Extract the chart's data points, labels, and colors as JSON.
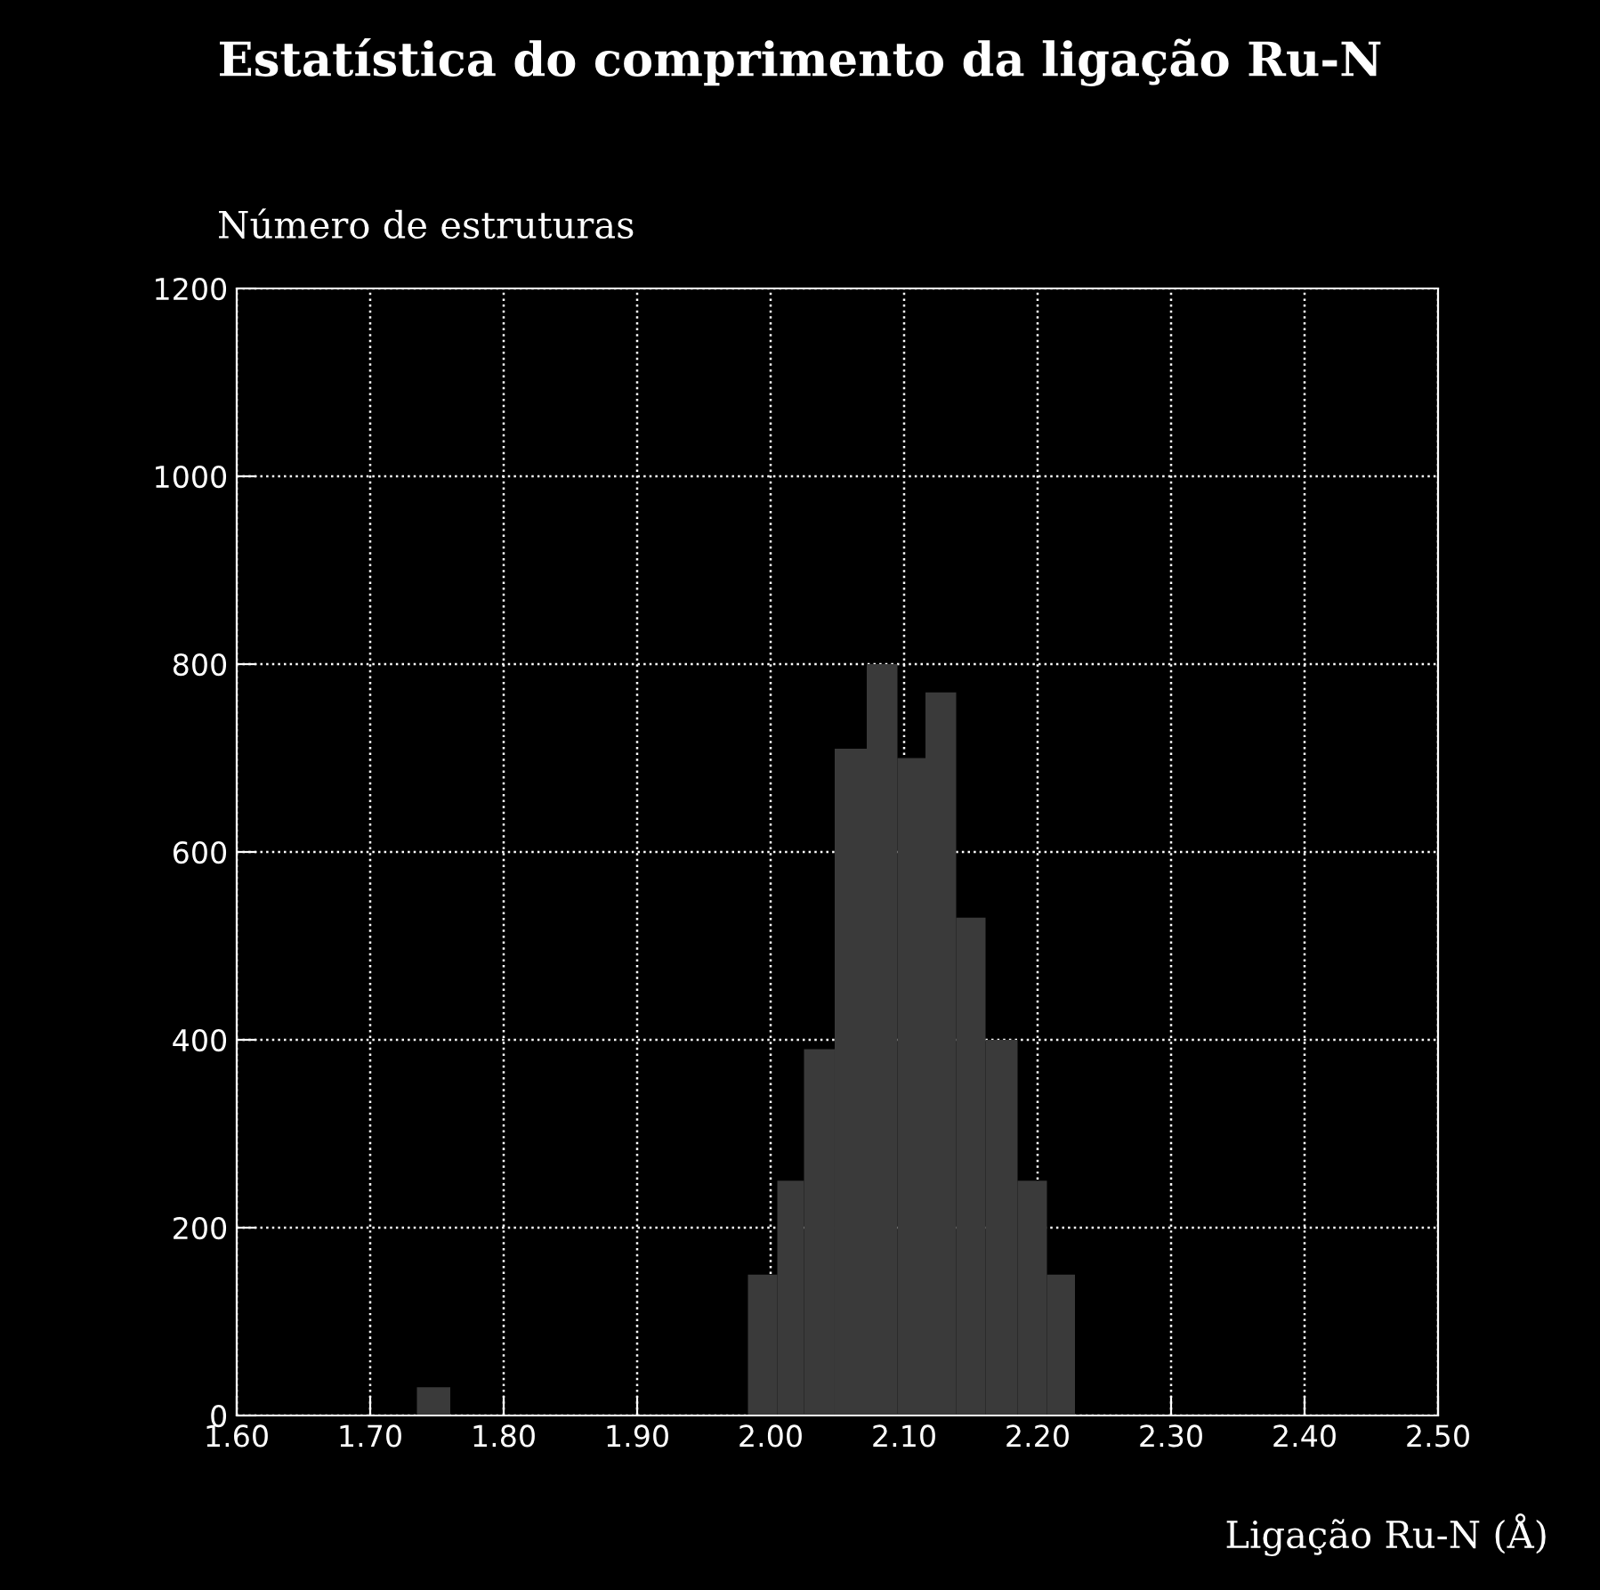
{
  "chart_data": {
    "type": "histogram",
    "title": "Estatística do comprimento da ligação Ru-N",
    "ylabel": "Número de estruturas",
    "xlabel": "Ligação Ru-N (Å)",
    "bins": [
      1.735,
      1.76,
      1.983,
      2.005,
      2.025,
      2.048,
      2.072,
      2.095,
      2.116,
      2.139,
      2.161,
      2.185,
      2.207,
      2.228
    ],
    "values": [
      30,
      0,
      150,
      250,
      390,
      710,
      800,
      700,
      770,
      530,
      400,
      250,
      150
    ],
    "color": "#3a3a3a",
    "xlim": [
      1.6,
      2.5
    ],
    "xticks": [
      {
        "value": 1.6,
        "label": "1.60"
      },
      {
        "value": 1.7,
        "label": "1.70"
      },
      {
        "value": 1.8,
        "label": "1.80"
      },
      {
        "value": 1.9,
        "label": "1.90"
      },
      {
        "value": 2.0,
        "label": "2.00"
      },
      {
        "value": 2.1,
        "label": "2.10"
      },
      {
        "value": 2.2,
        "label": "2.20"
      },
      {
        "value": 2.3,
        "label": "2.30"
      },
      {
        "value": 2.4,
        "label": "2.40"
      },
      {
        "value": 2.5,
        "label": "2.50"
      }
    ],
    "ylim": [
      0,
      1200
    ],
    "yticks": [
      0,
      200,
      400,
      600,
      800,
      1000,
      1200
    ],
    "grid": true
  }
}
